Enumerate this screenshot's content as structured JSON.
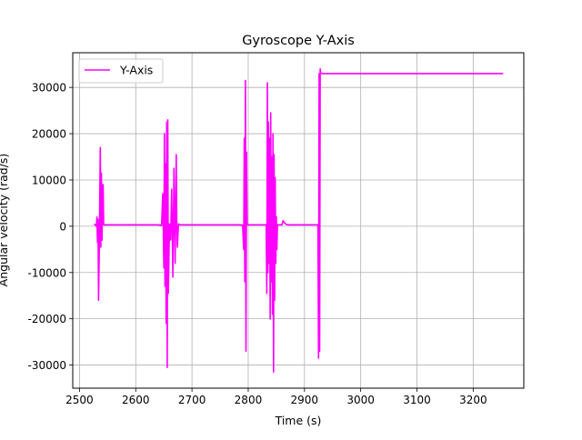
{
  "chart_data": {
    "type": "line",
    "title": "Gyroscope Y-Axis",
    "xlabel": "Time (s)",
    "ylabel": "Angular velocity (rad/s)",
    "xlim": [
      2488,
      3290
    ],
    "ylim": [
      -35000,
      37500
    ],
    "xticks": [
      2500,
      2600,
      2700,
      2800,
      2900,
      3000,
      3100,
      3200
    ],
    "yticks": [
      -30000,
      -20000,
      -10000,
      0,
      10000,
      20000,
      30000
    ],
    "grid": true,
    "legend_position": "top-left",
    "series": [
      {
        "name": "Y-Axis",
        "color": "#ff00ff",
        "x": [
          2526,
          2530,
          2531,
          2532,
          2533,
          2534,
          2535,
          2536,
          2537,
          2538,
          2539,
          2540,
          2541,
          2542,
          2543,
          2560,
          2600,
          2640,
          2646,
          2648,
          2650,
          2651,
          2652,
          2653,
          2654,
          2655,
          2656,
          2657,
          2658,
          2660,
          2662,
          2664,
          2666,
          2668,
          2670,
          2672,
          2673,
          2674,
          2676,
          2678,
          2700,
          2750,
          2785,
          2790,
          2792,
          2793,
          2794,
          2795,
          2796,
          2797,
          2798,
          2799,
          2800,
          2810,
          2830,
          2832,
          2833,
          2834,
          2835,
          2836,
          2837,
          2838,
          2839,
          2840,
          2841,
          2842,
          2843,
          2844,
          2845,
          2846,
          2847,
          2848,
          2849,
          2850,
          2851,
          2852,
          2860,
          2862,
          2866,
          2870,
          2900,
          2924,
          2925,
          2926,
          2927,
          2928,
          2929,
          2930,
          2935,
          3000,
          3100,
          3200,
          3253
        ],
        "y": [
          500,
          0,
          2000,
          -3500,
          1500,
          -16000,
          -6000,
          6000,
          17000,
          -4500,
          11500,
          -3000,
          8500,
          9000,
          300,
          300,
          300,
          300,
          200,
          7000,
          -9000,
          20000,
          -13000,
          13500,
          -21000,
          22500,
          -30500,
          23000,
          -14500,
          500,
          -3000,
          8000,
          -11000,
          12500,
          -8000,
          15500,
          300,
          -4500,
          500,
          300,
          300,
          300,
          300,
          200,
          -5000,
          19000,
          -12000,
          31500,
          -27000,
          16000,
          500,
          300,
          300,
          300,
          300,
          300,
          -14500,
          31000,
          -10000,
          22500,
          -8000,
          19000,
          -20000,
          24500,
          -12000,
          15000,
          -19000,
          20000,
          -31500,
          15500,
          -16000,
          10500,
          -8000,
          2000,
          -5000,
          300,
          300,
          1200,
          500,
          300,
          300,
          300,
          -28500,
          33000,
          -27000,
          34000,
          33000,
          33000,
          33000,
          33000,
          33000,
          33000,
          33000
        ]
      }
    ]
  }
}
